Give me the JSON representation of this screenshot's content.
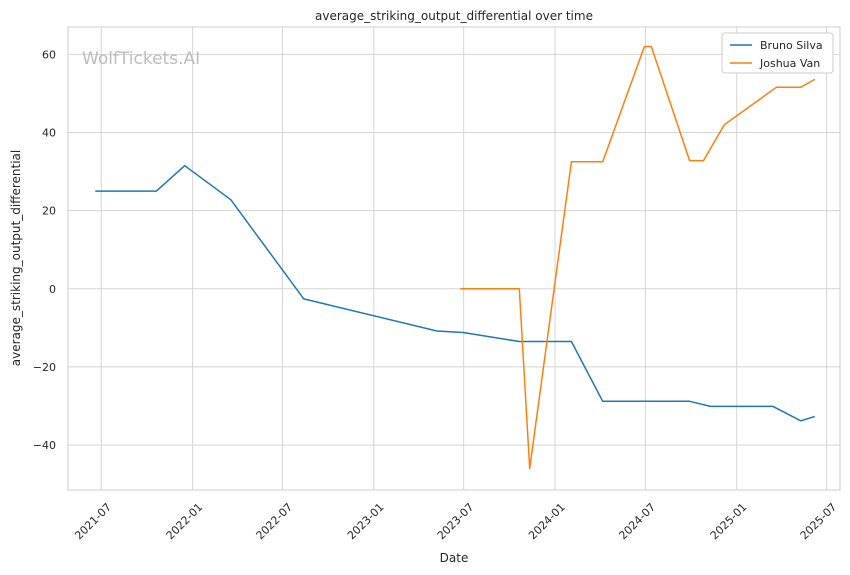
{
  "watermark": "WolfTickets.AI",
  "chart_data": {
    "type": "line",
    "title": "average_striking_output_differential over time",
    "xlabel": "Date",
    "ylabel": "average_striking_output_differential",
    "x_ticks": [
      "2021-07",
      "2022-01",
      "2022-07",
      "2023-01",
      "2023-07",
      "2024-01",
      "2024-07",
      "2025-01",
      "2025-07"
    ],
    "y_ticks": [
      -40,
      -20,
      0,
      20,
      40,
      60
    ],
    "xlim": [
      "2021-04-25",
      "2025-07-28"
    ],
    "ylim": [
      -51.5,
      67
    ],
    "grid": true,
    "legend_position": "top-right",
    "series": [
      {
        "name": "Bruno Silva",
        "color": "#1f77b4",
        "points": [
          {
            "x": "2021-06-19",
            "y": 25.0
          },
          {
            "x": "2021-10-20",
            "y": 25.0
          },
          {
            "x": "2021-12-16",
            "y": 31.5
          },
          {
            "x": "2022-03-19",
            "y": 22.8
          },
          {
            "x": "2022-08-13",
            "y": -2.6
          },
          {
            "x": "2023-05-08",
            "y": -10.8
          },
          {
            "x": "2023-06-30",
            "y": -11.2
          },
          {
            "x": "2023-10-21",
            "y": -13.5
          },
          {
            "x": "2024-02-03",
            "y": -13.5
          },
          {
            "x": "2024-04-06",
            "y": -28.8
          },
          {
            "x": "2024-09-28",
            "y": -28.8
          },
          {
            "x": "2024-11-09",
            "y": -30.1
          },
          {
            "x": "2025-03-15",
            "y": -30.1
          },
          {
            "x": "2025-05-10",
            "y": -33.8
          },
          {
            "x": "2025-06-07",
            "y": -32.7
          }
        ]
      },
      {
        "name": "Joshua Van",
        "color": "#ff7f0e",
        "points": [
          {
            "x": "2023-06-24",
            "y": 0.0
          },
          {
            "x": "2023-10-21",
            "y": 0.0
          },
          {
            "x": "2023-11-11",
            "y": -46.0
          },
          {
            "x": "2024-02-03",
            "y": 32.5
          },
          {
            "x": "2024-04-06",
            "y": 32.5
          },
          {
            "x": "2024-06-29",
            "y": 62.0
          },
          {
            "x": "2024-07-13",
            "y": 62.0
          },
          {
            "x": "2024-09-28",
            "y": 32.8
          },
          {
            "x": "2024-10-26",
            "y": 32.8
          },
          {
            "x": "2024-12-07",
            "y": 42.0
          },
          {
            "x": "2025-03-22",
            "y": 51.6
          },
          {
            "x": "2025-05-10",
            "y": 51.6
          },
          {
            "x": "2025-06-07",
            "y": 53.6
          }
        ]
      }
    ]
  }
}
